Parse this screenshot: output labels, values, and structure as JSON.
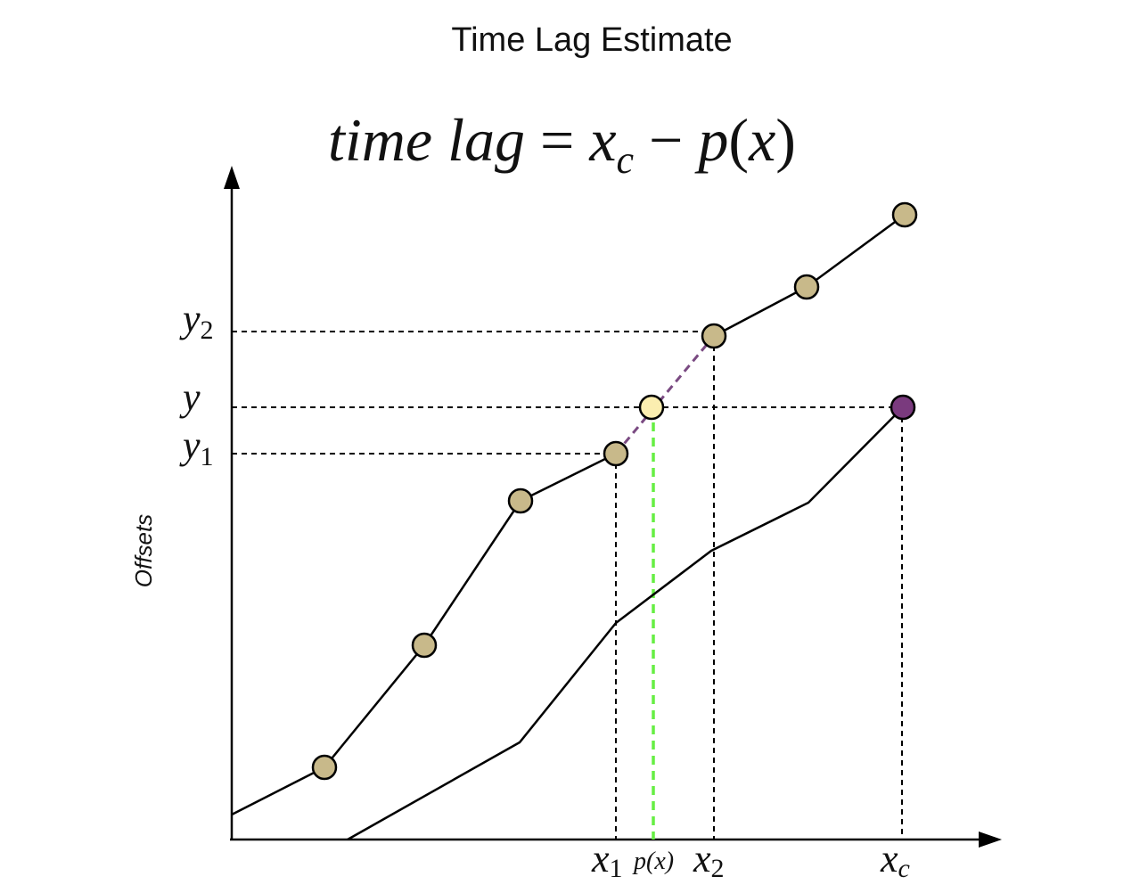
{
  "title": "Time Lag Estimate",
  "formula": {
    "lhs": "time lag",
    "equals": "=",
    "xc_base": "x",
    "xc_sub": "c",
    "minus": "−",
    "p": "p",
    "open_paren": "(",
    "x": "x",
    "close_paren": ")"
  },
  "y_axis_label": "Offsets",
  "y_labels": {
    "y2_base": "y",
    "y2_sub": "2",
    "y_base": "y",
    "y1_base": "y",
    "y1_sub": "1"
  },
  "x_labels": {
    "x1_base": "x",
    "x1_sub": "1",
    "px": "p(x)",
    "x2_base": "x",
    "x2_sub": "2",
    "xc_base": "x",
    "xc_sub": "c"
  },
  "colors": {
    "point_fill": "#c8b98a",
    "interpolated_point_fill": "#fbeeb0",
    "target_point_fill": "#7a3a7e",
    "interpolation_line": "#7a4a82",
    "projection_line": "#66ee44",
    "line": "#000000"
  }
}
